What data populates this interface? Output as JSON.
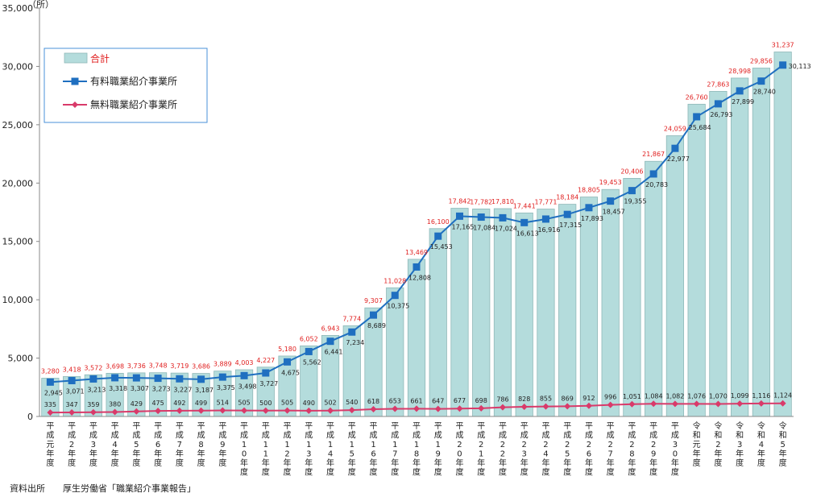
{
  "chart_data": {
    "type": "bar",
    "unit_label": "（所）",
    "ylim": [
      0,
      35000
    ],
    "yticks": [
      "0",
      "5,000",
      "10,000",
      "15,000",
      "20,000",
      "25,000",
      "30,000",
      "35,000"
    ],
    "ytick_values": [
      0,
      5000,
      10000,
      15000,
      20000,
      25000,
      30000,
      35000
    ],
    "categories": [
      "平成元年度",
      "平成2年度",
      "平成3年度",
      "平成4年度",
      "平成5年度",
      "平成6年度",
      "平成7年度",
      "平成8年度",
      "平成9年度",
      "平成10年度",
      "平成11年度",
      "平成12年度",
      "平成13年度",
      "平成14年度",
      "平成15年度",
      "平成16年度",
      "平成17年度",
      "平成18年度",
      "平成19年度",
      "平成20年度",
      "平成21年度",
      "平成22年度",
      "平成23年度",
      "平成24年度",
      "平成25年度",
      "平成26年度",
      "平成27年度",
      "平成28年度",
      "平成29年度",
      "平成30年度",
      "令和元年度",
      "令和2年度",
      "令和3年度",
      "令和4年度",
      "令和5年度"
    ],
    "category_labels": [
      [
        "平",
        "成",
        "元",
        "年",
        "度"
      ],
      [
        "平",
        "成",
        "2",
        "年",
        "度"
      ],
      [
        "平",
        "成",
        "3",
        "年",
        "度"
      ],
      [
        "平",
        "成",
        "4",
        "年",
        "度"
      ],
      [
        "平",
        "成",
        "5",
        "年",
        "度"
      ],
      [
        "平",
        "成",
        "6",
        "年",
        "度"
      ],
      [
        "平",
        "成",
        "7",
        "年",
        "度"
      ],
      [
        "平",
        "成",
        "8",
        "年",
        "度"
      ],
      [
        "平",
        "成",
        "9",
        "年",
        "度"
      ],
      [
        "平",
        "成",
        "1",
        "0",
        "年",
        "度"
      ],
      [
        "平",
        "成",
        "1",
        "1",
        "年",
        "度"
      ],
      [
        "平",
        "成",
        "1",
        "2",
        "年",
        "度"
      ],
      [
        "平",
        "成",
        "1",
        "3",
        "年",
        "度"
      ],
      [
        "平",
        "成",
        "1",
        "4",
        "年",
        "度"
      ],
      [
        "平",
        "成",
        "1",
        "5",
        "年",
        "度"
      ],
      [
        "平",
        "成",
        "1",
        "6",
        "年",
        "度"
      ],
      [
        "平",
        "成",
        "1",
        "7",
        "年",
        "度"
      ],
      [
        "平",
        "成",
        "1",
        "8",
        "年",
        "度"
      ],
      [
        "平",
        "成",
        "1",
        "9",
        "年",
        "度"
      ],
      [
        "平",
        "成",
        "2",
        "0",
        "年",
        "度"
      ],
      [
        "平",
        "成",
        "2",
        "1",
        "年",
        "度"
      ],
      [
        "平",
        "成",
        "2",
        "2",
        "年",
        "度"
      ],
      [
        "平",
        "成",
        "2",
        "3",
        "年",
        "度"
      ],
      [
        "平",
        "成",
        "2",
        "4",
        "年",
        "度"
      ],
      [
        "平",
        "成",
        "2",
        "5",
        "年",
        "度"
      ],
      [
        "平",
        "成",
        "2",
        "6",
        "年",
        "度"
      ],
      [
        "平",
        "成",
        "2",
        "7",
        "年",
        "度"
      ],
      [
        "平",
        "成",
        "2",
        "8",
        "年",
        "度"
      ],
      [
        "平",
        "成",
        "2",
        "9",
        "年",
        "度"
      ],
      [
        "平",
        "成",
        "3",
        "0",
        "年",
        "度"
      ],
      [
        "令",
        "和",
        "元",
        "年",
        "度"
      ],
      [
        "令",
        "和",
        "2",
        "年",
        "度"
      ],
      [
        "令",
        "和",
        "3",
        "年",
        "度"
      ],
      [
        "令",
        "和",
        "4",
        "年",
        "度"
      ],
      [
        "令",
        "和",
        "5",
        "年",
        "度"
      ]
    ],
    "series": [
      {
        "name": "合計",
        "kind": "bar",
        "color": "#b4dcdc",
        "values": [
          3280,
          3418,
          3572,
          3698,
          3736,
          3748,
          3719,
          3686,
          3889,
          4003,
          4227,
          5180,
          6052,
          6943,
          7774,
          9307,
          11028,
          13469,
          16100,
          17842,
          17782,
          17810,
          17441,
          17771,
          18184,
          18805,
          19453,
          20406,
          21867,
          24059,
          26760,
          27863,
          28998,
          29856,
          31237
        ],
        "labels": [
          "3,280",
          "3,418",
          "3,572",
          "3,698",
          "3,736",
          "3,748",
          "3,719",
          "3,686",
          "3,889",
          "4,003",
          "4,227",
          "5,180",
          "6,052",
          "6,943",
          "7,774",
          "9,307",
          "11,028",
          "13,469",
          "16,100",
          "17,842",
          "17,782",
          "17,810",
          "17,441",
          "17,771",
          "18,184",
          "18,805",
          "19,453",
          "20,406",
          "21,867",
          "24,059",
          "26,760",
          "27,863",
          "28,998",
          "29,856",
          "31,237"
        ]
      },
      {
        "name": "有料職業紹介事業所",
        "kind": "line",
        "color": "#1f6fc0",
        "values": [
          2945,
          3071,
          3213,
          3318,
          3307,
          3273,
          3227,
          3187,
          3375,
          3498,
          3727,
          4675,
          5562,
          6441,
          7234,
          8689,
          10375,
          12808,
          15453,
          17165,
          17084,
          17024,
          16613,
          16916,
          17315,
          17893,
          18457,
          19355,
          20783,
          22977,
          25684,
          26793,
          27899,
          28740,
          30113
        ],
        "labels": [
          "2,945",
          "3,071",
          "3,213",
          "3,318",
          "3,307",
          "3,273",
          "3,227",
          "3,187",
          "3,375",
          "3,498",
          "3,727",
          "4,675",
          "5,562",
          "6,441",
          "7,234",
          "8,689",
          "10,375",
          "12,808",
          "15,453",
          "17,165",
          "17,084",
          "17,024",
          "16,613",
          "16,916",
          "17,315",
          "17,893",
          "18,457",
          "19,355",
          "20,783",
          "22,977",
          "25,684",
          "26,793",
          "27,899",
          "28,740",
          "30,113"
        ]
      },
      {
        "name": "無料職業紹介事業所",
        "kind": "line",
        "color": "#d93a6a",
        "values": [
          335,
          347,
          359,
          380,
          429,
          475,
          492,
          499,
          514,
          505,
          500,
          505,
          490,
          502,
          540,
          618,
          653,
          661,
          647,
          677,
          698,
          786,
          828,
          855,
          869,
          912,
          996,
          1051,
          1084,
          1082,
          1076,
          1070,
          1099,
          1116,
          1124
        ],
        "labels": [
          "335",
          "347",
          "359",
          "380",
          "429",
          "475",
          "492",
          "499",
          "514",
          "505",
          "500",
          "505",
          "490",
          "502",
          "540",
          "618",
          "653",
          "661",
          "647",
          "677",
          "698",
          "786",
          "828",
          "855",
          "869",
          "912",
          "996",
          "1,051",
          "1,084",
          "1,082",
          "1,076",
          "1,070",
          "1,099",
          "1,116",
          "1,124"
        ]
      }
    ],
    "legend": {
      "placement": "top-left",
      "items": [
        "合計",
        "有料職業紹介事業所",
        "無料職業紹介事業所"
      ]
    },
    "grid": false
  },
  "source": {
    "label": "資料出所",
    "text": "厚生労働省「職業紹介事業報告」"
  }
}
